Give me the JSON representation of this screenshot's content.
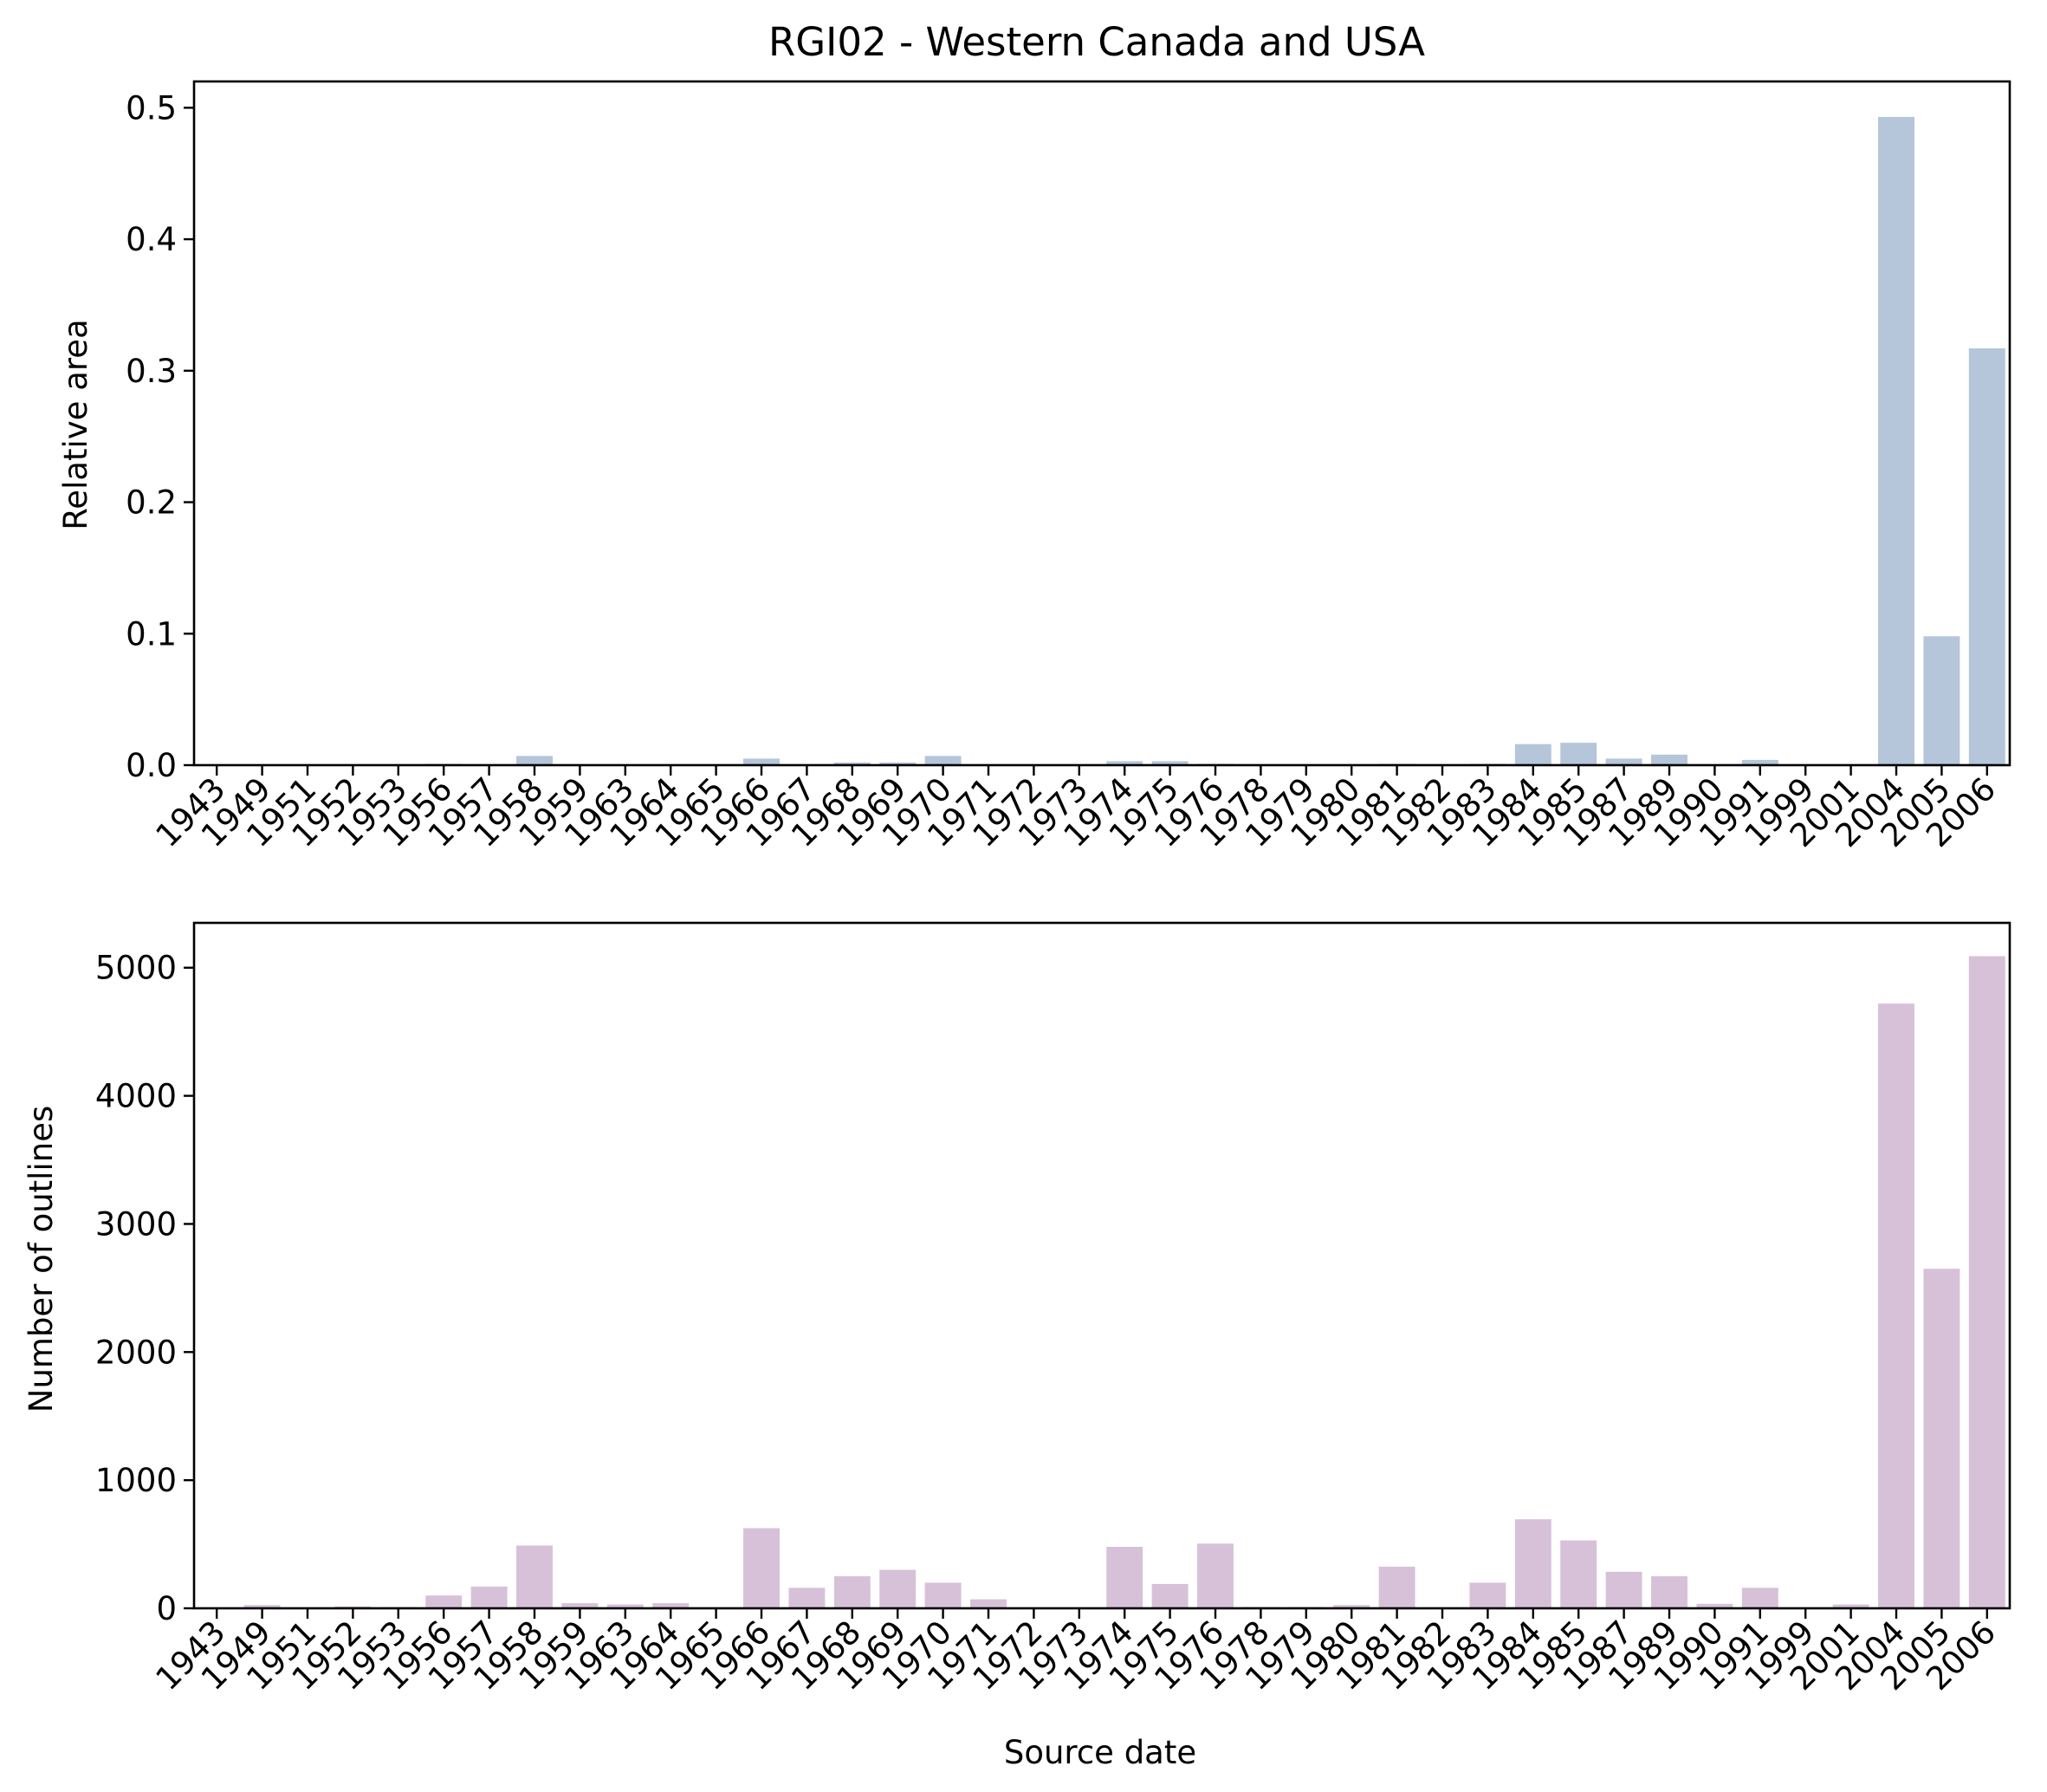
{
  "chart_data": [
    {
      "type": "bar",
      "title": "RGI02 - Western Canada and USA",
      "xlabel": "",
      "ylabel": "Relative area",
      "categories": [
        "1943",
        "1949",
        "1951",
        "1952",
        "1953",
        "1956",
        "1957",
        "1958",
        "1959",
        "1963",
        "1964",
        "1965",
        "1966",
        "1967",
        "1968",
        "1969",
        "1970",
        "1971",
        "1972",
        "1973",
        "1974",
        "1975",
        "1976",
        "1978",
        "1979",
        "1980",
        "1981",
        "1982",
        "1983",
        "1984",
        "1985",
        "1987",
        "1989",
        "1990",
        "1991",
        "1999",
        "2001",
        "2004",
        "2005",
        "2006"
      ],
      "values": [
        0.0,
        0.0,
        0.0,
        0.0,
        0.0,
        0.001,
        0.0,
        0.007,
        0.0,
        0.0,
        0.0,
        0.0,
        0.005,
        0.0,
        0.002,
        0.002,
        0.007,
        0.0,
        0.0,
        0.0,
        0.003,
        0.003,
        0.001,
        0.0,
        0.0,
        0.0,
        0.001,
        0.0,
        0.001,
        0.016,
        0.017,
        0.005,
        0.008,
        0.0,
        0.004,
        0.0,
        0.0,
        0.493,
        0.098,
        0.317
      ],
      "ylim": [
        0,
        0.52
      ],
      "yticks": [
        "0.0",
        "0.1",
        "0.2",
        "0.3",
        "0.4",
        "0.5"
      ],
      "color": "#b5c5da",
      "grid": false
    },
    {
      "type": "bar",
      "title": "",
      "xlabel": "Source date",
      "ylabel": "Number of outlines",
      "categories": [
        "1943",
        "1949",
        "1951",
        "1952",
        "1953",
        "1956",
        "1957",
        "1958",
        "1959",
        "1963",
        "1964",
        "1965",
        "1966",
        "1967",
        "1968",
        "1969",
        "1970",
        "1971",
        "1972",
        "1973",
        "1974",
        "1975",
        "1976",
        "1978",
        "1979",
        "1980",
        "1981",
        "1982",
        "1983",
        "1984",
        "1985",
        "1987",
        "1989",
        "1990",
        "1991",
        "1999",
        "2001",
        "2004",
        "2005",
        "2006"
      ],
      "values": [
        3,
        25,
        5,
        15,
        10,
        100,
        170,
        490,
        40,
        30,
        40,
        5,
        625,
        160,
        250,
        300,
        200,
        70,
        5,
        5,
        480,
        190,
        505,
        10,
        10,
        25,
        325,
        5,
        200,
        695,
        530,
        285,
        250,
        35,
        160,
        5,
        30,
        4720,
        2650,
        5090
      ],
      "ylim": [
        0,
        5350
      ],
      "yticks": [
        "0",
        "1000",
        "2000",
        "3000",
        "4000",
        "5000"
      ],
      "color": "#d7c1d8",
      "grid": false
    }
  ]
}
